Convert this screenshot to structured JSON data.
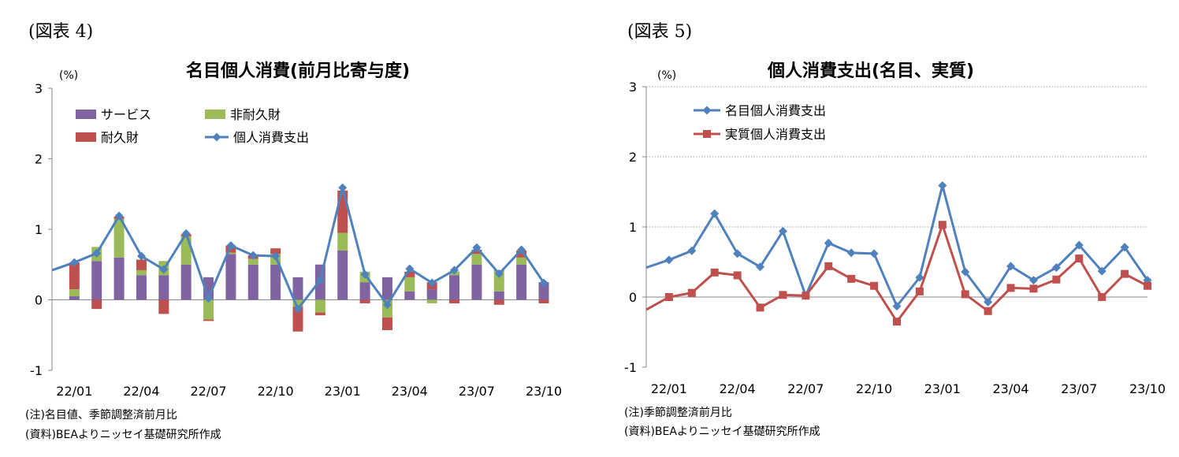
{
  "charts": [
    {
      "fig_label": "(図表 4)",
      "title": "名目個人消費(前月比寄与度)",
      "unit": "(%)",
      "note": "(注)名目値、季節調整済前月比",
      "source": "(資料)BEAよりニッセイ基礎研究所作成",
      "chart_data": {
        "type": "bar",
        "stacked": true,
        "categories": [
          "21/12",
          "22/01",
          "22/02",
          "22/03",
          "22/04",
          "22/05",
          "22/06",
          "22/07",
          "22/08",
          "22/09",
          "22/10",
          "22/11",
          "22/12",
          "23/01",
          "23/02",
          "23/03",
          "23/04",
          "23/05",
          "23/06",
          "23/07",
          "23/08",
          "23/09",
          "23/10"
        ],
        "tick_labels": [
          "22/01",
          "22/04",
          "22/07",
          "22/10",
          "23/01",
          "23/04",
          "23/07",
          "23/10"
        ],
        "ylim": [
          -1,
          3
        ],
        "yticks": [
          -1,
          0,
          1,
          2,
          3
        ],
        "legend": "top-left",
        "series": [
          {
            "name": "サービス",
            "color": "#8064a2",
            "values": [
              null,
              0.05,
              0.55,
              0.6,
              0.35,
              0.35,
              0.5,
              0.32,
              0.65,
              0.5,
              0.5,
              0.32,
              0.5,
              0.7,
              0.25,
              0.32,
              0.12,
              0.15,
              0.35,
              0.5,
              0.12,
              0.5,
              0.25
            ]
          },
          {
            "name": "非耐久財",
            "color": "#9bbb59",
            "values": [
              null,
              0.1,
              0.2,
              0.55,
              0.07,
              0.2,
              0.4,
              -0.28,
              0.02,
              0.08,
              0.15,
              -0.1,
              -0.18,
              0.25,
              0.15,
              -0.25,
              0.2,
              -0.05,
              0.05,
              0.15,
              0.3,
              0.1,
              0.0
            ]
          },
          {
            "name": "耐久財",
            "color": "#c0504d",
            "values": [
              null,
              0.38,
              -0.13,
              0.03,
              0.15,
              -0.2,
              0.03,
              -0.02,
              0.1,
              0.05,
              0.08,
              -0.35,
              -0.04,
              0.6,
              -0.05,
              -0.18,
              0.08,
              0.1,
              -0.05,
              0.06,
              -0.07,
              0.1,
              -0.05
            ]
          },
          {
            "name": "個人消費支出",
            "type": "line",
            "color": "#4f81bd",
            "values": [
              0.42,
              0.53,
              0.66,
              1.19,
              0.62,
              0.43,
              0.94,
              0.02,
              0.77,
              0.63,
              0.62,
              -0.13,
              0.28,
              1.59,
              0.36,
              -0.07,
              0.44,
              0.24,
              0.42,
              0.74,
              0.37,
              0.71,
              0.24
            ]
          }
        ]
      }
    },
    {
      "fig_label": "(図表 5)",
      "title": "個人消費支出(名目、実質)",
      "unit": "(%)",
      "note": "(注)季節調整済前月比",
      "source": "(資料)BEAよりニッセイ基礎研究所作成",
      "chart_data": {
        "type": "line",
        "categories": [
          "21/12",
          "22/01",
          "22/02",
          "22/03",
          "22/04",
          "22/05",
          "22/06",
          "22/07",
          "22/08",
          "22/09",
          "22/10",
          "22/11",
          "22/12",
          "23/01",
          "23/02",
          "23/03",
          "23/04",
          "23/05",
          "23/06",
          "23/07",
          "23/08",
          "23/09",
          "23/10"
        ],
        "tick_labels": [
          "22/01",
          "22/04",
          "22/07",
          "22/10",
          "23/01",
          "23/04",
          "23/07",
          "23/10"
        ],
        "ylim": [
          -1,
          3
        ],
        "yticks": [
          -1,
          0,
          1,
          2,
          3
        ],
        "legend": "top-left",
        "series": [
          {
            "name": "名目個人消費支出",
            "color": "#4f81bd",
            "marker": "diamond",
            "values": [
              0.42,
              0.53,
              0.66,
              1.19,
              0.62,
              0.43,
              0.94,
              0.02,
              0.77,
              0.63,
              0.62,
              -0.13,
              0.28,
              1.59,
              0.36,
              -0.07,
              0.44,
              0.24,
              0.42,
              0.74,
              0.37,
              0.71,
              0.24
            ]
          },
          {
            "name": "実質個人消費支出",
            "color": "#c0504d",
            "marker": "square",
            "values": [
              -0.18,
              0.0,
              0.06,
              0.35,
              0.31,
              -0.15,
              0.03,
              0.02,
              0.44,
              0.26,
              0.16,
              -0.35,
              0.08,
              1.03,
              0.04,
              -0.2,
              0.13,
              0.12,
              0.25,
              0.55,
              0.0,
              0.33,
              0.16
            ]
          }
        ]
      }
    }
  ]
}
